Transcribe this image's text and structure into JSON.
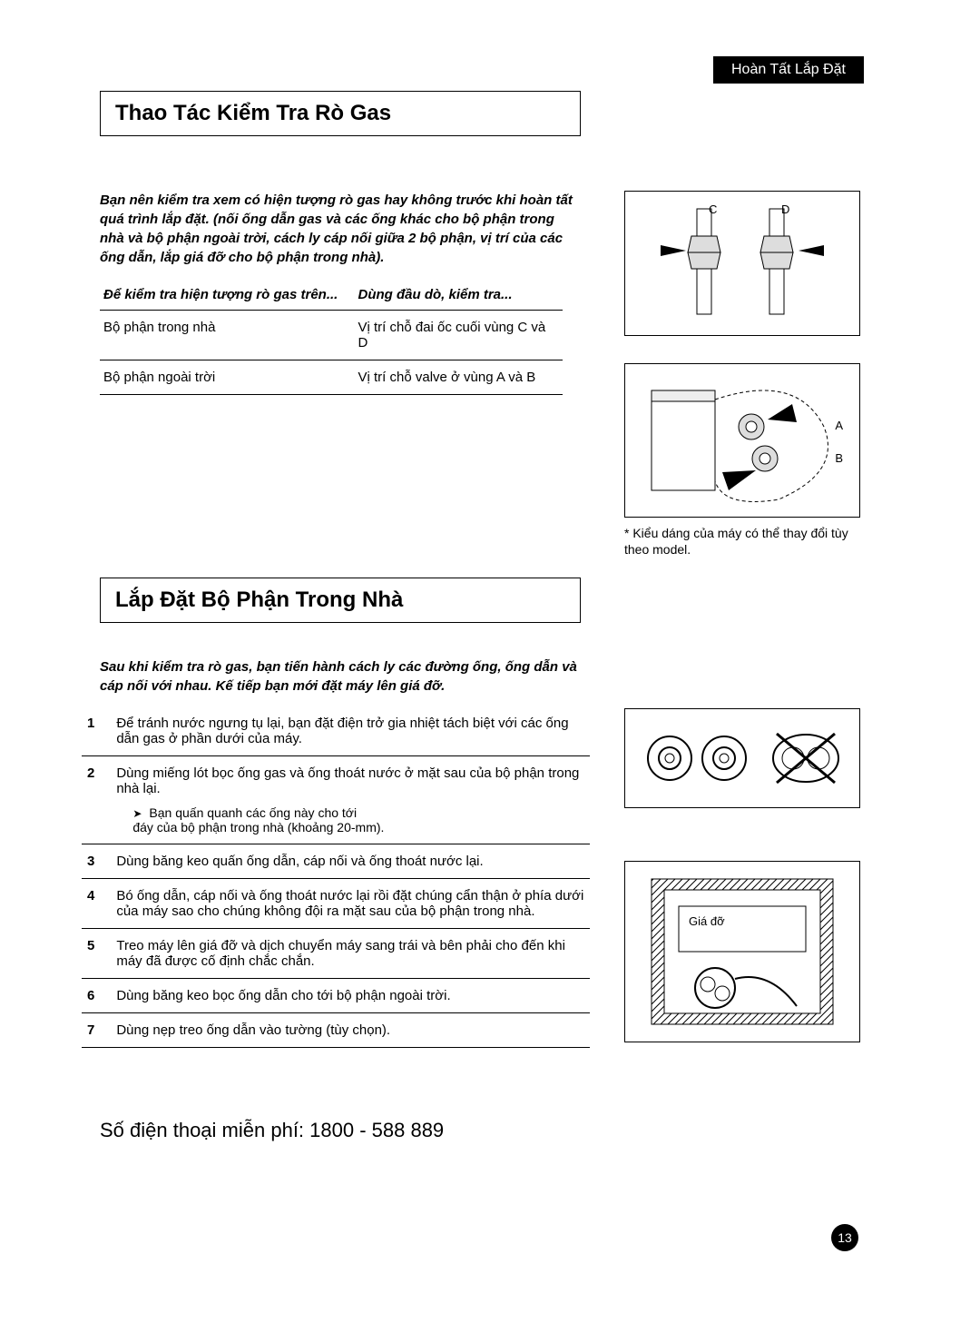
{
  "header_tab": "Hoàn Tất Lắp Đặt",
  "section1": {
    "title": "Thao Tác Kiểm Tra Rò Gas",
    "intro": "Bạn nên kiểm tra xem có hiện tượng rò gas hay không trước khi hoàn tất quá trình lắp đặt. (nối ống dẫn gas và các ống khác cho bộ phận trong nhà và bộ phận ngoài trời, cách ly cáp nối giữa 2 bộ phận, vị trí của các ống dẫn, lắp giá đỡ cho bộ phận trong nhà).",
    "table": {
      "col1_header": "Để kiểm tra hiện tượng rò gas trên...",
      "col2_header": "Dùng đầu dò, kiểm tra...",
      "rows": [
        {
          "c1": "Bộ phận trong nhà",
          "c2": "Vị trí chỗ đai ốc cuối vùng C và D"
        },
        {
          "c1": "Bộ phận ngoài trời",
          "c2": "Vị trí chỗ valve ở vùng A và B"
        }
      ]
    },
    "fig1": {
      "label_c": "C",
      "label_d": "D"
    },
    "fig2": {
      "label_a": "A",
      "label_b": "B"
    },
    "fig2_caption": "* Kiểu dáng của máy có thể thay đổi tùy theo model."
  },
  "section2": {
    "title": "Lắp Đặt Bộ Phận Trong Nhà",
    "intro": "Sau khi kiểm tra rò gas, bạn tiến hành cách ly các đường ống, ống dẫn và cáp nối với nhau. Kế tiếp bạn mới đặt máy lên giá đỡ.",
    "steps": [
      {
        "n": "1",
        "t": "Để tránh nước ngưng tụ lại, bạn đặt điện trở gia nhiệt tách biệt với các ống dẫn gas ở phần dưới của máy."
      },
      {
        "n": "2",
        "t": "Dùng miếng lót bọc ống gas và ống thoát nước ở mặt sau của bộ phận trong nhà lại.",
        "sub": "Bạn quấn quanh các ống này cho tới\nđáy của bộ phận trong nhà (khoảng 20-mm)."
      },
      {
        "n": "3",
        "t": "Dùng băng keo quấn ống dẫn, cáp nối và ống thoát nước lại."
      },
      {
        "n": "4",
        "t": "Bó ống dẫn, cáp nối và ống thoát nước lại rồi đặt chúng cẩn thận ở phía dưới của máy sao cho chúng không đội ra mặt sau của bộ phận trong nhà."
      },
      {
        "n": "5",
        "t": "Treo máy lên giá đỡ và dịch chuyển máy sang trái và bên phải cho đến khi máy đã được cố định chắc chắn."
      },
      {
        "n": "6",
        "t": "Dùng băng keo bọc ống dẫn cho tới bộ phận ngoài trời."
      },
      {
        "n": "7",
        "t": "Dùng nẹp treo ống dẫn vào tường (tùy chọn)."
      }
    ],
    "fig4_label": "Giá đỡ"
  },
  "phone": "Số điện thoại miễn phí: 1800 - 588 889",
  "page_number": "13"
}
